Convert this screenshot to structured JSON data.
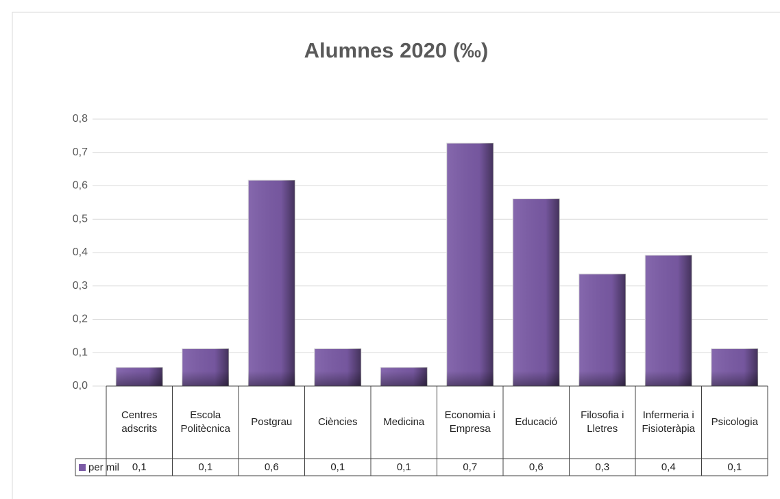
{
  "chart_data": {
    "type": "bar",
    "title": "Alumnes 2020 (‰)",
    "categories": [
      "Centres adscrits",
      "Escola Politècnica",
      "Postgrau",
      "Ciències",
      "Medicina",
      "Economia i Empresa",
      "Educació",
      "Filosofia i Lletres",
      "Infermeria i Fisioteràpia",
      "Psicologia"
    ],
    "series": [
      {
        "name": "per mil",
        "color": "#7b5ba6",
        "values": [
          0.056,
          0.112,
          0.617,
          0.112,
          0.056,
          0.728,
          0.561,
          0.336,
          0.392,
          0.112
        ],
        "value_labels": [
          "0,1",
          "0,1",
          "0,6",
          "0,1",
          "0,1",
          "0,7",
          "0,6",
          "0,3",
          "0,4",
          "0,1"
        ]
      }
    ],
    "ylim": [
      0,
      0.8
    ],
    "yticks": [
      {
        "value": 0,
        "label": "0,0"
      },
      {
        "value": 0.1,
        "label": "0,1"
      },
      {
        "value": 0.2,
        "label": "0,2"
      },
      {
        "value": 0.3,
        "label": "0,3"
      },
      {
        "value": 0.4,
        "label": "0,4"
      },
      {
        "value": 0.5,
        "label": "0,5"
      },
      {
        "value": 0.6,
        "label": "0,6"
      },
      {
        "value": 0.7,
        "label": "0,7"
      },
      {
        "value": 0.8,
        "label": "0,8"
      }
    ],
    "grid": true
  }
}
